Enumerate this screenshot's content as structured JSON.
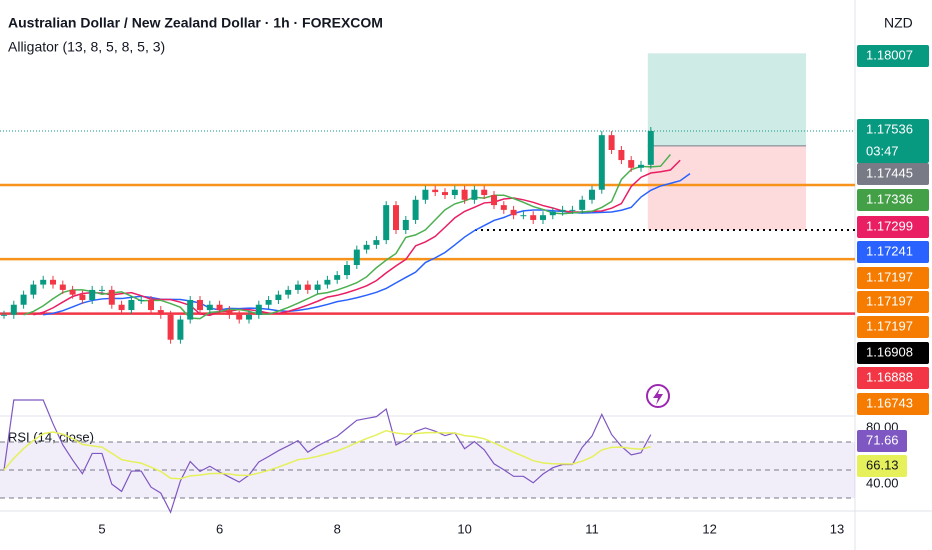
{
  "header": {
    "title": "Australian Dollar / New Zealand Dollar · 1h · FOREXCOM",
    "indicator": "Alligator (13, 8, 5, 8, 5, 3)",
    "currency": "NZD"
  },
  "chart_data": {
    "type": "candlestick",
    "categories": [
      null,
      null,
      null,
      null,
      null,
      null,
      null,
      null,
      null,
      null,
      "5",
      null,
      null,
      null,
      null,
      null,
      null,
      null,
      null,
      null,
      null,
      null,
      "6",
      null,
      null,
      null,
      null,
      null,
      null,
      null,
      null,
      null,
      null,
      null,
      "8",
      null,
      null,
      null,
      null,
      null,
      null,
      null,
      null,
      null,
      null,
      null,
      null,
      "10",
      null,
      null,
      null,
      null,
      null,
      null,
      null,
      null,
      null,
      null,
      null,
      null,
      "11",
      null,
      null,
      null,
      null,
      null,
      null,
      null,
      null,
      null,
      null,
      null,
      "12",
      null,
      null,
      null,
      null,
      null,
      null,
      null,
      null,
      null,
      null,
      null,
      null,
      "13"
    ],
    "values": [
      1.17226,
      1.17243,
      1.1726,
      1.17277,
      1.17285,
      1.17277,
      1.17268,
      1.1726,
      1.17251,
      1.17268,
      1.17268,
      1.17243,
      1.17234,
      1.17251,
      1.17251,
      1.17234,
      1.17226,
      1.17184,
      1.17218,
      1.17251,
      1.17234,
      1.17243,
      1.17234,
      1.17226,
      1.17218,
      1.17226,
      1.17243,
      1.17251,
      1.1726,
      1.17268,
      1.17277,
      1.17268,
      1.17277,
      1.17285,
      1.17293,
      1.1731,
      1.17336,
      1.17344,
      1.17352,
      1.17411,
      1.17369,
      1.17386,
      1.1742,
      1.17437,
      1.17433,
      1.17428,
      1.17437,
      1.1742,
      1.17437,
      1.17428,
      1.17411,
      1.17403,
      1.17394,
      1.17394,
      1.17386,
      1.17394,
      1.174,
      1.17403,
      1.17403,
      1.1742,
      1.17437,
      1.17529,
      1.17504,
      1.17487,
      1.17474,
      1.17479,
      1.17536,
      null,
      null,
      null,
      null,
      null,
      null,
      null,
      null,
      null,
      null,
      null,
      null,
      null,
      null,
      null,
      null,
      null,
      null,
      null
    ],
    "ylim": [
      1.17057,
      1.17757
    ],
    "up_color": "#089981",
    "down_color": "#f23645",
    "current_price": 1.17536,
    "countdown": "03:47",
    "levels": [
      {
        "value": 1.17445,
        "color": "#f7931a"
      },
      {
        "value": 1.1732,
        "color": "#f7931a"
      },
      {
        "value": 1.17228,
        "color": "#f23645"
      }
    ],
    "position": {
      "target": 1.17667,
      "entry": 1.17511,
      "stop": 1.17369
    },
    "price_labels": [
      {
        "label": "1.18007",
        "color": "#089981"
      },
      {
        "label": "1.17536",
        "color": "#089981"
      },
      {
        "label": "1.17445",
        "color": "#787b86"
      },
      {
        "label": "1.17336",
        "color": "#43a047"
      },
      {
        "label": "1.17299",
        "color": "#e91e63"
      },
      {
        "label": "1.17241",
        "color": "#2962ff"
      },
      {
        "label": "1.17197",
        "color": "#f57c00"
      },
      {
        "label": "1.17197",
        "color": "#f57c00"
      },
      {
        "label": "1.17197",
        "color": "#f57c00"
      },
      {
        "label": "1.16908",
        "color": "#000000"
      },
      {
        "label": "1.16888",
        "color": "#f23645"
      },
      {
        "label": "1.16743",
        "color": "#f57c00"
      }
    ]
  },
  "rsi": {
    "title": "RSI (14, close)",
    "ylim": [
      21.4,
      85.7
    ],
    "yticks": [
      {
        "value": 80,
        "label": "80.00"
      },
      {
        "value": 40,
        "label": "40.00"
      }
    ],
    "levels": [
      70,
      50,
      30
    ],
    "value_labels": [
      {
        "value": 71.66,
        "label": "71.66",
        "color": "#7e57c2"
      },
      {
        "value": 66.13,
        "label": "66.13",
        "color": "#e5f05a"
      }
    ]
  }
}
